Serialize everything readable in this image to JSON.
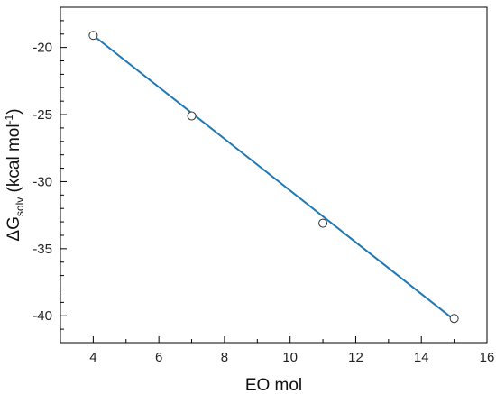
{
  "chart_data": {
    "type": "scatter",
    "xlabel": "EO mol",
    "ylabel": {
      "prefix": "ΔG",
      "subscript": "solv",
      "unit_open": " (kcal mol",
      "superscript": "-1",
      "unit_close": ")"
    },
    "xlim": [
      3,
      16
    ],
    "ylim": [
      -42,
      -17
    ],
    "xticks": [
      4,
      6,
      8,
      10,
      12,
      14,
      16
    ],
    "yticks": [
      -20,
      -25,
      -30,
      -35,
      -40
    ],
    "grid": false,
    "points": [
      {
        "x": 4,
        "y": -19.1
      },
      {
        "x": 7,
        "y": -25.1
      },
      {
        "x": 11,
        "y": -33.1
      },
      {
        "x": 15,
        "y": -40.2
      }
    ],
    "fit_line": {
      "x": [
        4,
        15
      ],
      "y": [
        -19.1,
        -40.3
      ]
    },
    "colors": {
      "line": "#1f77b4",
      "marker_edge": "#333333",
      "axes": "#000000"
    }
  }
}
